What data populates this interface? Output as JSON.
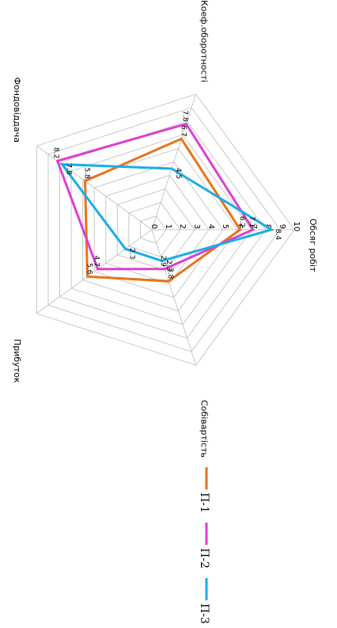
{
  "chart_data": {
    "type": "radar",
    "axes": [
      "Обсяг робіт",
      "Собівартість",
      "Прибуток",
      "Фондовіддача",
      "Коеф.оборотності"
    ],
    "ticks": [
      "0",
      "1",
      "2",
      "3",
      "4",
      "5",
      "6",
      "7",
      "8",
      "9",
      "10"
    ],
    "rmax": 10,
    "series": [
      {
        "name": "П-1",
        "color": "#e8731a",
        "values": [
          6.2,
          3.8,
          5.6,
          5.8,
          6.7
        ]
      },
      {
        "name": "П-2",
        "color": "#dd3ed0",
        "values": [
          7.1,
          2.9,
          4.7,
          8.2,
          7.8
        ]
      },
      {
        "name": "П-3",
        "color": "#19aee6",
        "values": [
          8.4,
          2.3,
          2.3,
          7.8,
          4.5
        ]
      }
    ],
    "legend_position": "bottom",
    "grid": true
  }
}
